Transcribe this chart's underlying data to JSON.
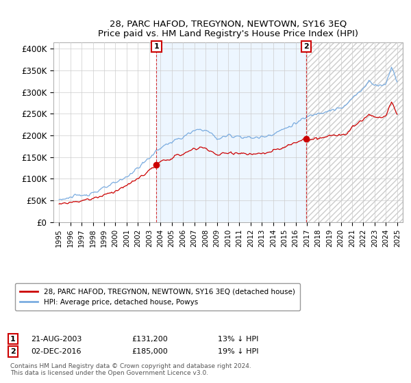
{
  "title": "28, PARC HAFOD, TREGYNON, NEWTOWN, SY16 3EQ",
  "subtitle": "Price paid vs. HM Land Registry's House Price Index (HPI)",
  "ylabel_ticks": [
    "£0",
    "£50K",
    "£100K",
    "£150K",
    "£200K",
    "£250K",
    "£300K",
    "£350K",
    "£400K"
  ],
  "ytick_vals": [
    0,
    50000,
    100000,
    150000,
    200000,
    250000,
    300000,
    350000,
    400000
  ],
  "ylim": [
    0,
    415000
  ],
  "transaction1_date": "21-AUG-2003",
  "transaction1_price": 131200,
  "transaction1_label": "13% ↓ HPI",
  "transaction1_x": 2003.645,
  "transaction2_date": "02-DEC-2016",
  "transaction2_price": 185000,
  "transaction2_label": "19% ↓ HPI",
  "transaction2_x": 2016.917,
  "legend_label1": "28, PARC HAFOD, TREGYNON, NEWTOWN, SY16 3EQ (detached house)",
  "legend_label2": "HPI: Average price, detached house, Powys",
  "footer1": "Contains HM Land Registry data © Crown copyright and database right 2024.",
  "footer2": "This data is licensed under the Open Government Licence v3.0.",
  "line_color_property": "#cc0000",
  "line_color_hpi": "#7aace0",
  "fill_color_between": "#ddeeff",
  "vline_color": "#cc0000",
  "marker_color": "#cc0000",
  "background_color": "#ffffff",
  "grid_color": "#cccccc",
  "hatch_color": "#cccccc"
}
